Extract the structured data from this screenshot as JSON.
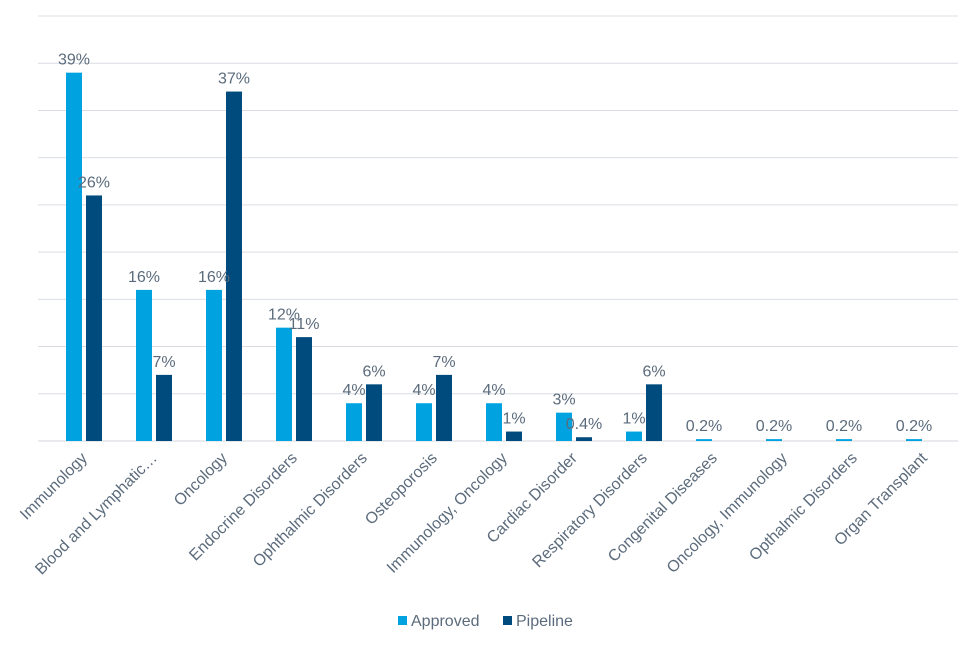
{
  "chart_data": {
    "type": "bar",
    "title": "",
    "xlabel": "",
    "ylabel": "",
    "ylim": [
      0,
      45
    ],
    "grid": true,
    "legend": "bottom",
    "categories": [
      "Immunology",
      "Blood and Lymphatic…",
      "Oncology",
      "Endocrine Disorders",
      "Ophthalmic Disorders",
      "Osteoporosis",
      "Immunology, Oncology",
      "Cardiac Disorder",
      "Respiratory Disorders",
      "Congenital Diseases",
      "Oncology, Immunology",
      "Opthalmic Disorders",
      "Organ Transplant"
    ],
    "series": [
      {
        "name": "Approved",
        "color": "#00a3e0",
        "values": [
          39,
          16,
          16,
          12,
          4,
          4,
          4,
          3,
          1,
          0.2,
          0.2,
          0.2,
          0.2
        ],
        "labels": [
          "39%",
          "16%",
          "16%",
          "12%",
          "4%",
          "4%",
          "4%",
          "3%",
          "1%",
          "0.2%",
          "0.2%",
          "0.2%",
          "0.2%"
        ]
      },
      {
        "name": "Pipeline",
        "color": "#004b7d",
        "values": [
          26,
          7,
          37,
          11,
          6,
          7,
          1,
          0.4,
          6,
          0,
          0,
          0,
          0
        ],
        "labels": [
          "26%",
          "7%",
          "37%",
          "11%",
          "6%",
          "7%",
          "1%",
          "0.4%",
          "6%",
          "",
          "",
          "",
          ""
        ]
      }
    ]
  }
}
